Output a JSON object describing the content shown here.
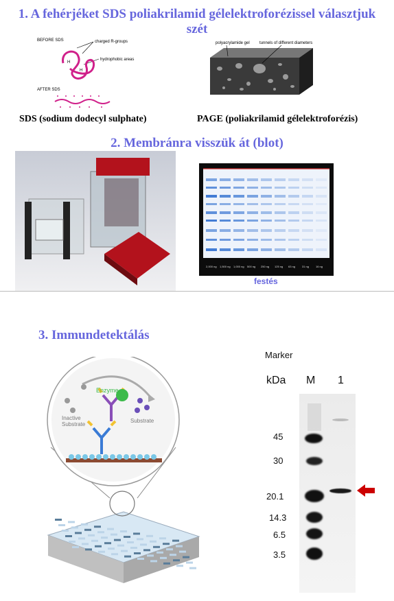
{
  "section1": {
    "title": "1. A fehérjéket SDS poliakrilamid  gélelektroforézissel választjuk szét",
    "sds_diagram": {
      "before_label": "BEFORE SDS",
      "after_label": "AFTER SDS",
      "charged_label": "charged R-groups",
      "hydrophobic_label": "hydrophobic areas",
      "h_mark": "H"
    },
    "gel_diagram": {
      "gel_label": "polyacrylamide gel",
      "tunnels_label": "tunnels of different diameters"
    },
    "caption_left": "SDS (sodium  dodecyl sulphate)",
    "caption_right": "PAGE  (poliakrilamid  gélelektroforézis)"
  },
  "section2": {
    "title": "2. Membránra  visszük át (blot)",
    "stain_caption": "festés"
  },
  "section3": {
    "title": "3. Immundetektálás",
    "elisa": {
      "enzyme_label": "Enzyme",
      "inactive_label": "Inactive\nSubstrate",
      "substrate_label": "Substrate"
    },
    "western": {
      "marker_title": "Marker",
      "kda_label": "kDa",
      "lane_m": "M",
      "lane_1": "1",
      "ladder": [
        "45",
        "30",
        "20.1",
        "14.3",
        "6.5",
        "3.5"
      ]
    }
  },
  "colors": {
    "heading": "#6666dd",
    "arrow": "#cc0000",
    "stain_blue": "#2f6fd0",
    "gel_dark": "#3a3a3a"
  }
}
